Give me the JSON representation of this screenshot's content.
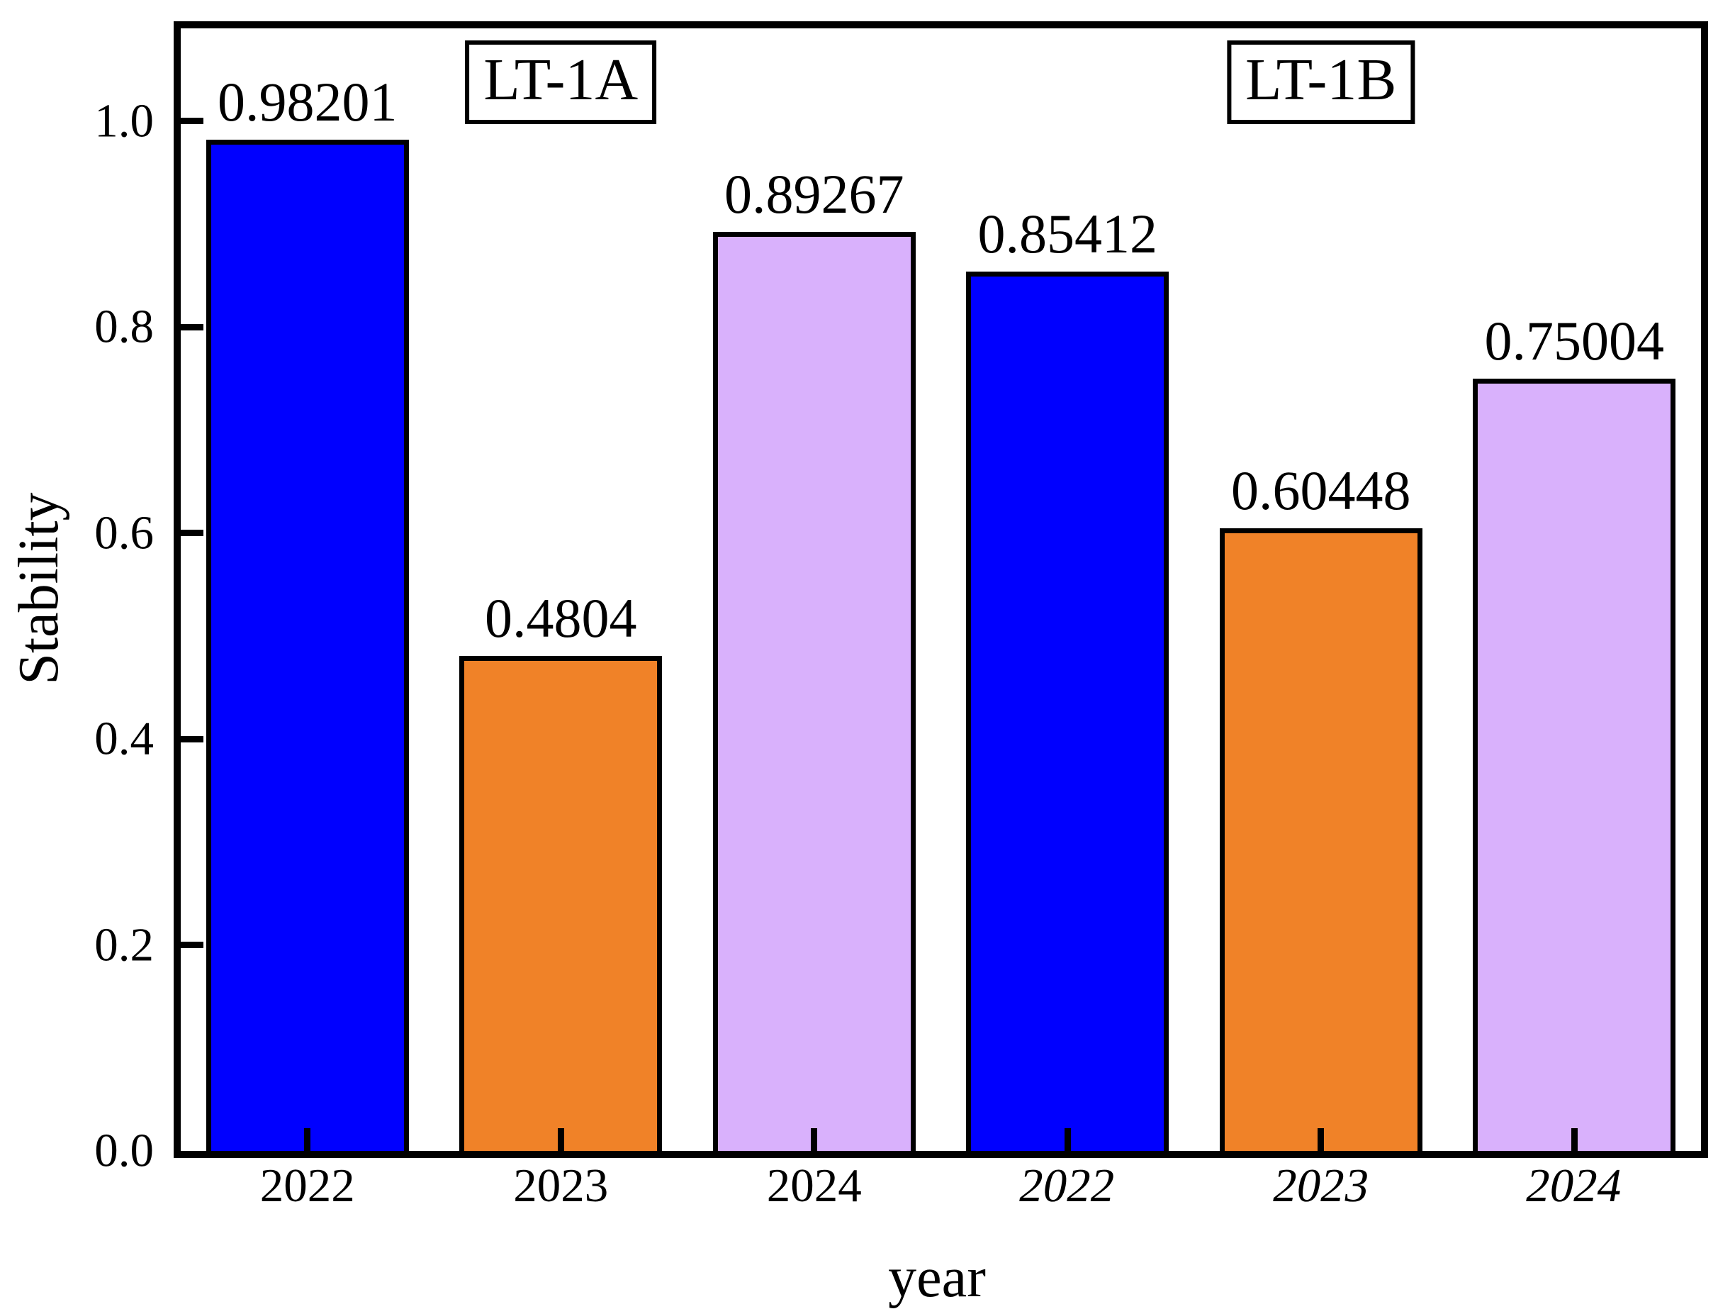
{
  "figure": {
    "background_color": "#ffffff",
    "axis_color": "#000000"
  },
  "chart_data": {
    "type": "bar",
    "title": "",
    "xlabel": "year",
    "ylabel": "Stability",
    "categories": [
      "2022",
      "2023",
      "2024",
      "2022",
      "2023",
      "2024"
    ],
    "values": [
      0.98201,
      0.4804,
      0.89267,
      0.85412,
      0.60448,
      0.75004
    ],
    "value_labels": [
      "0.98201",
      "0.4804",
      "0.89267",
      "0.85412",
      "0.60448",
      "0.75004"
    ],
    "bar_colors": [
      "#0000FF",
      "#F08228",
      "#D9B1FC",
      "#0000FF",
      "#F08228",
      "#D9B1FC"
    ],
    "bar_edge_color": "#000000",
    "groups": [
      {
        "label": "LT-1A",
        "anchor_bar_index": 1
      },
      {
        "label": "LT-1B",
        "anchor_bar_index": 4
      }
    ],
    "yticks": [
      "0.0",
      "0.2",
      "0.4",
      "0.6",
      "0.8",
      "1.0"
    ],
    "ytick_values": [
      0.0,
      0.2,
      0.4,
      0.6,
      0.8,
      1.0
    ],
    "ylim": [
      0,
      1.09
    ],
    "grid": false,
    "tick_direction": "in",
    "legend_position": "top-inside"
  }
}
